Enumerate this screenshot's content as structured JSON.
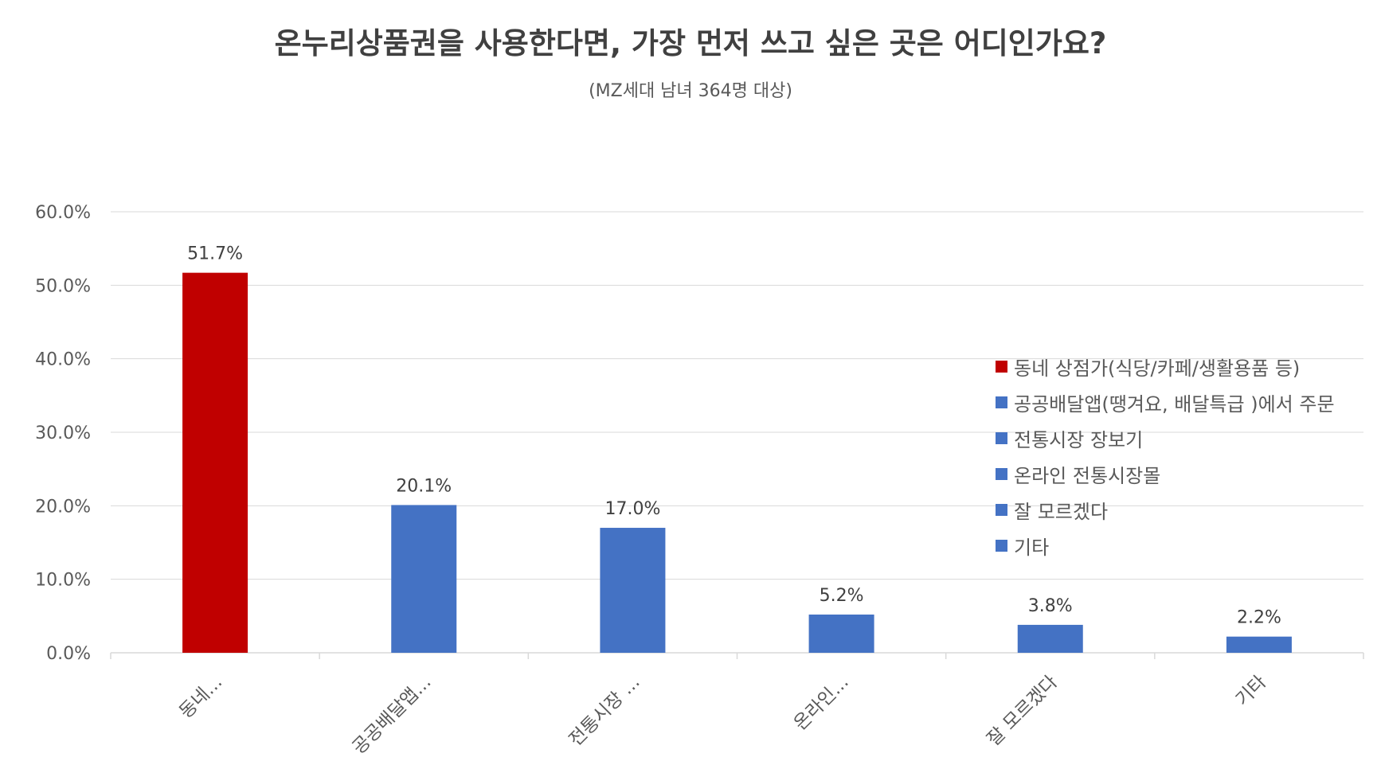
{
  "chart_data": {
    "type": "bar",
    "title": "온누리상품권을 사용한다면, 가장 먼저 쓰고 싶은 곳은 어디인가요?",
    "subtitle": "(MZ세대 남녀 364명 대상)",
    "categories": [
      "동네...",
      "공공배달앱...",
      "전통시장 ...",
      "온라인...",
      "잘 모르겠다",
      "기타"
    ],
    "legend": [
      "동네 상점가(식당/카페/생활용품 등)",
      "공공배달앱(땡겨요, 배달특급 )에서 주문",
      "전통시장 장보기",
      "온라인 전통시장몰",
      "잘 모르겠다",
      "기타"
    ],
    "values": [
      51.7,
      20.1,
      17.0,
      5.2,
      3.8,
      2.2
    ],
    "value_labels": [
      "51.7%",
      "20.1%",
      "17.0%",
      "5.2%",
      "3.8%",
      "2.2%"
    ],
    "colors": [
      "#C00000",
      "#4472C4",
      "#4472C4",
      "#4472C4",
      "#4472C4",
      "#4472C4"
    ],
    "ylim": [
      0,
      60
    ],
    "yticks": [
      0,
      10,
      20,
      30,
      40,
      50,
      60
    ],
    "ytick_labels": [
      "0.0%",
      "10.0%",
      "20.0%",
      "30.0%",
      "40.0%",
      "50.0%",
      "60.0%"
    ],
    "grid": true,
    "legend_position": "right"
  }
}
